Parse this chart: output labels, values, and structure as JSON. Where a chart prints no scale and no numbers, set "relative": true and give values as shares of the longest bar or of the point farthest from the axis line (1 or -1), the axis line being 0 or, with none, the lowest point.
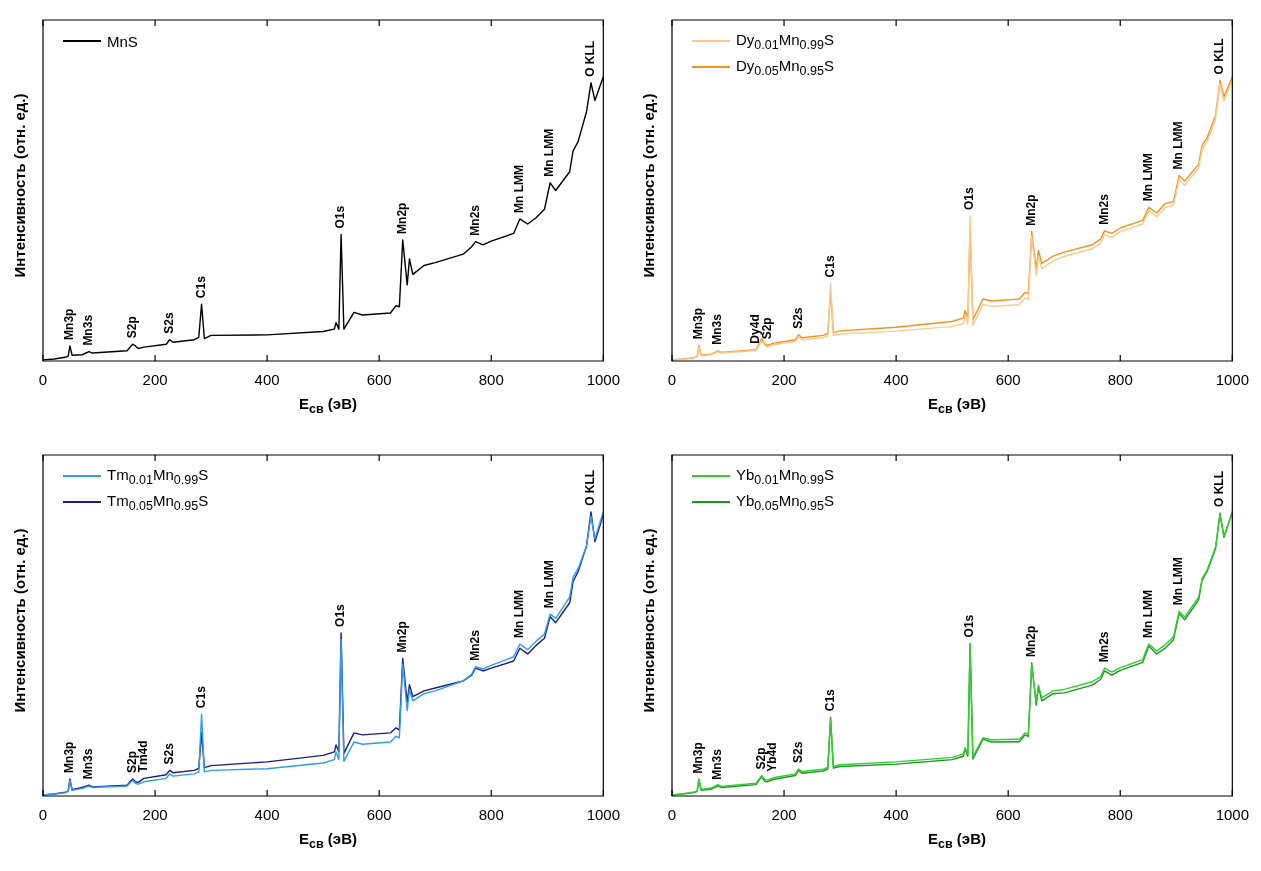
{
  "chart_data": [
    {
      "type": "line",
      "xlabel": "E$_{св}$ (эВ)",
      "ylabel": "Интенсивность (отн. ед.)",
      "relative": true,
      "legend": "top left",
      "xlim": [
        0,
        1000
      ],
      "xticks": [
        0,
        200,
        400,
        600,
        800,
        1000
      ],
      "x": [
        0,
        20,
        40,
        45,
        48,
        52,
        70,
        82,
        88,
        150,
        160,
        165,
        170,
        180,
        220,
        226,
        232,
        270,
        278,
        283,
        288,
        300,
        400,
        500,
        520,
        523,
        528,
        532,
        537,
        555,
        570,
        620,
        630,
        636,
        642,
        650,
        654,
        660,
        680,
        700,
        750,
        765,
        772,
        785,
        800,
        840,
        851,
        865,
        880,
        895,
        905,
        915,
        940,
        946,
        955,
        970,
        978,
        985,
        1000
      ],
      "series": [
        {
          "name": "MnS",
          "color": "#000000",
          "values": [
            0.004,
            0.007,
            0.013,
            0.017,
            0.053,
            0.02,
            0.022,
            0.033,
            0.028,
            0.036,
            0.059,
            0.053,
            0.044,
            0.049,
            0.059,
            0.075,
            0.066,
            0.075,
            0.083,
            0.2,
            0.079,
            0.09,
            0.092,
            0.104,
            0.112,
            0.135,
            0.112,
            0.445,
            0.112,
            0.171,
            0.162,
            0.169,
            0.195,
            0.191,
            0.426,
            0.268,
            0.359,
            0.305,
            0.336,
            0.346,
            0.376,
            0.402,
            0.42,
            0.409,
            0.422,
            0.449,
            0.5,
            0.482,
            0.504,
            0.534,
            0.627,
            0.6,
            0.666,
            0.739,
            0.772,
            0.877,
            0.979,
            0.917,
            1.0
          ]
        }
      ],
      "annotations": [
        {
          "text": "Mn3p",
          "x": 48,
          "y": 0.053
        },
        {
          "text": "Mn3s",
          "x": 82,
          "y": 0.033
        },
        {
          "text": "S2p",
          "x": 160,
          "y": 0.059
        },
        {
          "text": "S2s",
          "x": 226,
          "y": 0.075
        },
        {
          "text": "C1s",
          "x": 283,
          "y": 0.2
        },
        {
          "text": "O1s",
          "x": 532,
          "y": 0.445
        },
        {
          "text": "Mn2p",
          "x": 642,
          "y": 0.426
        },
        {
          "text": "Mn2s",
          "x": 772,
          "y": 0.42
        },
        {
          "text": "Mn LMM",
          "x": 851,
          "y": 0.5
        },
        {
          "text": "Mn LMM",
          "x": 905,
          "y": 0.627
        },
        {
          "text": "O KLL",
          "x": 978,
          "y": 0.979
        }
      ]
    },
    {
      "type": "line",
      "xlabel": "E$_{св}$ (эВ)",
      "ylabel": "Интенсивность (отн. ед.)",
      "relative": true,
      "legend": "top left",
      "xlim": [
        0,
        1000
      ],
      "xticks": [
        0,
        200,
        400,
        600,
        800,
        1000
      ],
      "x": [
        0,
        20,
        40,
        45,
        48,
        52,
        70,
        82,
        88,
        150,
        160,
        165,
        170,
        180,
        220,
        226,
        232,
        270,
        278,
        283,
        288,
        300,
        400,
        500,
        520,
        523,
        528,
        532,
        537,
        555,
        570,
        620,
        630,
        636,
        642,
        650,
        654,
        660,
        680,
        700,
        750,
        765,
        772,
        785,
        800,
        840,
        851,
        865,
        880,
        895,
        905,
        915,
        940,
        946,
        955,
        970,
        978,
        985,
        1000
      ],
      "series": [
        {
          "name": "Dy$_{0.01}$Mn$_{0.99}$S",
          "color": "#fcc98e",
          "values": [
            0.004,
            0.006,
            0.011,
            0.015,
            0.05,
            0.018,
            0.022,
            0.033,
            0.028,
            0.037,
            0.072,
            0.056,
            0.05,
            0.057,
            0.068,
            0.085,
            0.075,
            0.082,
            0.088,
            0.273,
            0.09,
            0.095,
            0.105,
            0.122,
            0.132,
            0.16,
            0.13,
            0.51,
            0.125,
            0.2,
            0.192,
            0.198,
            0.222,
            0.218,
            0.44,
            0.3,
            0.37,
            0.325,
            0.352,
            0.368,
            0.395,
            0.415,
            0.445,
            0.435,
            0.455,
            0.482,
            0.53,
            0.508,
            0.54,
            0.548,
            0.64,
            0.618,
            0.68,
            0.745,
            0.772,
            0.852,
            0.975,
            0.915,
            0.99
          ]
        },
        {
          "name": "Dy$_{0.05}$Mn$_{0.95}$S",
          "color": "#f7901e",
          "values": [
            0.004,
            0.007,
            0.012,
            0.016,
            0.055,
            0.02,
            0.024,
            0.036,
            0.03,
            0.04,
            0.079,
            0.06,
            0.055,
            0.062,
            0.075,
            0.092,
            0.082,
            0.09,
            0.097,
            0.244,
            0.1,
            0.106,
            0.119,
            0.139,
            0.152,
            0.178,
            0.152,
            0.468,
            0.145,
            0.218,
            0.211,
            0.218,
            0.241,
            0.237,
            0.455,
            0.323,
            0.389,
            0.343,
            0.369,
            0.383,
            0.409,
            0.429,
            0.458,
            0.449,
            0.468,
            0.495,
            0.541,
            0.521,
            0.554,
            0.561,
            0.653,
            0.633,
            0.693,
            0.759,
            0.785,
            0.864,
            0.987,
            0.93,
            1.0
          ]
        }
      ],
      "annotations": [
        {
          "text": "Mn3p",
          "x": 48,
          "y": 0.055
        },
        {
          "text": "Mn3s",
          "x": 82,
          "y": 0.036
        },
        {
          "text": "Dy4d",
          "x": 150,
          "y": 0.04
        },
        {
          "text": "S2p",
          "x": 170,
          "y": 0.055
        },
        {
          "text": "S2s",
          "x": 226,
          "y": 0.092
        },
        {
          "text": "C1s",
          "x": 283,
          "y": 0.273
        },
        {
          "text": "O1s",
          "x": 532,
          "y": 0.51
        },
        {
          "text": "Mn2p",
          "x": 642,
          "y": 0.455
        },
        {
          "text": "Mn2s",
          "x": 772,
          "y": 0.458
        },
        {
          "text": "Mn LMM",
          "x": 851,
          "y": 0.541
        },
        {
          "text": "Mn LMM",
          "x": 905,
          "y": 0.653
        },
        {
          "text": "O KLL",
          "x": 978,
          "y": 0.987
        }
      ]
    },
    {
      "type": "line",
      "xlabel": "E$_{св}$ (эВ)",
      "ylabel": "Интенсивность (отн. ед.)",
      "relative": true,
      "legend": "top left",
      "xlim": [
        0,
        1000
      ],
      "xticks": [
        0,
        200,
        400,
        600,
        800,
        1000
      ],
      "x": [
        0,
        20,
        40,
        45,
        48,
        52,
        70,
        82,
        88,
        150,
        160,
        165,
        170,
        180,
        220,
        226,
        232,
        270,
        278,
        283,
        288,
        300,
        400,
        500,
        520,
        523,
        528,
        532,
        537,
        555,
        570,
        620,
        630,
        636,
        642,
        650,
        654,
        660,
        680,
        700,
        750,
        765,
        772,
        785,
        800,
        840,
        851,
        865,
        880,
        895,
        905,
        915,
        940,
        946,
        955,
        970,
        978,
        985,
        1000
      ],
      "series": [
        {
          "name": "Tm$_{0.01}$Mn$_{0.99}$S",
          "color": "#2f9bf5",
          "values": [
            0.004,
            0.007,
            0.012,
            0.016,
            0.055,
            0.02,
            0.027,
            0.035,
            0.03,
            0.035,
            0.055,
            0.045,
            0.042,
            0.05,
            0.062,
            0.078,
            0.07,
            0.078,
            0.085,
            0.288,
            0.085,
            0.09,
            0.096,
            0.116,
            0.128,
            0.155,
            0.128,
            0.55,
            0.122,
            0.19,
            0.182,
            0.19,
            0.21,
            0.205,
            0.465,
            0.3,
            0.375,
            0.335,
            0.36,
            0.37,
            0.405,
            0.428,
            0.455,
            0.447,
            0.46,
            0.49,
            0.535,
            0.515,
            0.545,
            0.57,
            0.64,
            0.625,
            0.7,
            0.77,
            0.8,
            0.88,
            0.985,
            0.905,
            1.0
          ]
        },
        {
          "name": "Tm$_{0.05}$Mn$_{0.95}$S",
          "color": "#1c1c87",
          "values": [
            0.004,
            0.007,
            0.013,
            0.017,
            0.06,
            0.022,
            0.03,
            0.038,
            0.032,
            0.038,
            0.06,
            0.05,
            0.048,
            0.062,
            0.075,
            0.09,
            0.082,
            0.09,
            0.097,
            0.222,
            0.1,
            0.107,
            0.12,
            0.143,
            0.155,
            0.18,
            0.155,
            0.574,
            0.15,
            0.222,
            0.215,
            0.222,
            0.24,
            0.232,
            0.484,
            0.33,
            0.392,
            0.35,
            0.37,
            0.38,
            0.405,
            0.425,
            0.45,
            0.44,
            0.45,
            0.475,
            0.52,
            0.5,
            0.53,
            0.555,
            0.631,
            0.61,
            0.68,
            0.755,
            0.79,
            0.88,
            1.0,
            0.895,
            0.99
          ]
        }
      ],
      "annotations": [
        {
          "text": "Mn3p",
          "x": 48,
          "y": 0.06
        },
        {
          "text": "Mn3s",
          "x": 82,
          "y": 0.038
        },
        {
          "text": "S2p",
          "x": 160,
          "y": 0.06
        },
        {
          "text": "Tm4d",
          "x": 180,
          "y": 0.062
        },
        {
          "text": "S2s",
          "x": 226,
          "y": 0.09
        },
        {
          "text": "C1s",
          "x": 283,
          "y": 0.288
        },
        {
          "text": "O1s",
          "x": 532,
          "y": 0.574
        },
        {
          "text": "Mn2p",
          "x": 642,
          "y": 0.484
        },
        {
          "text": "Mn2s",
          "x": 772,
          "y": 0.455
        },
        {
          "text": "Mn LMM",
          "x": 851,
          "y": 0.535
        },
        {
          "text": "Mn LMM",
          "x": 905,
          "y": 0.64
        },
        {
          "text": "O KLL",
          "x": 978,
          "y": 1.0
        }
      ]
    },
    {
      "type": "line",
      "xlabel": "E$_{св}$ (эВ)",
      "ylabel": "Интенсивность (отн. ед.)",
      "relative": true,
      "legend": "top left",
      "xlim": [
        0,
        1000
      ],
      "xticks": [
        0,
        200,
        400,
        600,
        800,
        1000
      ],
      "x": [
        0,
        20,
        40,
        45,
        48,
        52,
        70,
        82,
        88,
        150,
        160,
        165,
        170,
        180,
        220,
        226,
        232,
        270,
        278,
        283,
        288,
        300,
        400,
        500,
        520,
        523,
        528,
        532,
        537,
        555,
        570,
        620,
        630,
        636,
        642,
        650,
        654,
        660,
        680,
        700,
        750,
        765,
        772,
        785,
        800,
        840,
        851,
        865,
        880,
        895,
        905,
        915,
        940,
        946,
        955,
        970,
        978,
        985,
        1000
      ],
      "series": [
        {
          "name": "Yb$_{0.01}$Mn$_{0.99}$S",
          "color": "#33cc33",
          "values": [
            0.004,
            0.008,
            0.014,
            0.018,
            0.06,
            0.023,
            0.028,
            0.04,
            0.034,
            0.045,
            0.072,
            0.058,
            0.056,
            0.064,
            0.078,
            0.095,
            0.086,
            0.094,
            0.102,
            0.27,
            0.104,
            0.11,
            0.12,
            0.136,
            0.148,
            0.17,
            0.148,
            0.53,
            0.138,
            0.205,
            0.198,
            0.2,
            0.222,
            0.218,
            0.46,
            0.33,
            0.39,
            0.345,
            0.37,
            0.375,
            0.402,
            0.42,
            0.45,
            0.436,
            0.452,
            0.48,
            0.535,
            0.51,
            0.532,
            0.56,
            0.65,
            0.63,
            0.7,
            0.765,
            0.795,
            0.875,
            0.99,
            0.915,
            0.995
          ]
        },
        {
          "name": "Yb$_{0.05}$Mn$_{0.95}$S",
          "color": "#1a9a1a",
          "values": [
            0.004,
            0.007,
            0.012,
            0.016,
            0.058,
            0.02,
            0.024,
            0.036,
            0.03,
            0.04,
            0.068,
            0.052,
            0.05,
            0.058,
            0.072,
            0.09,
            0.08,
            0.088,
            0.095,
            0.277,
            0.098,
            0.104,
            0.112,
            0.128,
            0.14,
            0.165,
            0.14,
            0.537,
            0.13,
            0.2,
            0.19,
            0.191,
            0.215,
            0.21,
            0.468,
            0.32,
            0.385,
            0.335,
            0.36,
            0.363,
            0.39,
            0.41,
            0.44,
            0.425,
            0.442,
            0.47,
            0.528,
            0.5,
            0.52,
            0.55,
            0.642,
            0.62,
            0.69,
            0.76,
            0.79,
            0.87,
            0.996,
            0.91,
            1.0
          ]
        }
      ],
      "annotations": [
        {
          "text": "Mn3p",
          "x": 48,
          "y": 0.058
        },
        {
          "text": "Mn3s",
          "x": 82,
          "y": 0.036
        },
        {
          "text": "S2p",
          "x": 160,
          "y": 0.072
        },
        {
          "text": "Yb4d",
          "x": 180,
          "y": 0.064
        },
        {
          "text": "S2s",
          "x": 226,
          "y": 0.095
        },
        {
          "text": "C1s",
          "x": 283,
          "y": 0.277
        },
        {
          "text": "O1s",
          "x": 532,
          "y": 0.537
        },
        {
          "text": "Mn2p",
          "x": 642,
          "y": 0.468
        },
        {
          "text": "Mn2s",
          "x": 772,
          "y": 0.45
        },
        {
          "text": "Mn LMM",
          "x": 851,
          "y": 0.535
        },
        {
          "text": "Mn LMM",
          "x": 905,
          "y": 0.65
        },
        {
          "text": "O KLL",
          "x": 978,
          "y": 0.996
        }
      ]
    }
  ]
}
